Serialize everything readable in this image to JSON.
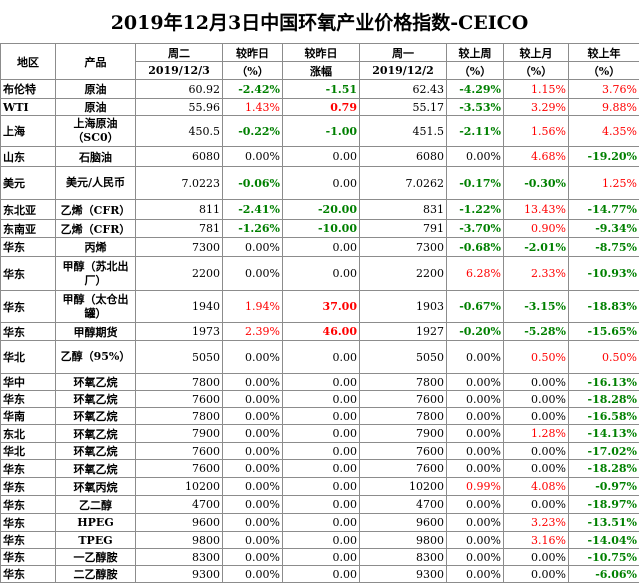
{
  "title": "2019年12月3日中国环氧产业价格指数-CEICO",
  "header": {
    "region": "地区",
    "product": "产品",
    "tue": "周二",
    "tue_date": "2019/12/3",
    "cmp_pct": "较昨日",
    "cmp_pct_unit": "（%）",
    "cmp_abs": "较昨日",
    "cmp_abs_unit": "涨幅",
    "mon": "周一",
    "mon_date": "2019/12/2",
    "wk": "较上周",
    "wk_unit": "（%）",
    "mo": "较上月",
    "mo_unit": "（%）",
    "yr": "较上年",
    "yr_unit": "（%）"
  },
  "colors": {
    "down": "#008000",
    "up": "#ff0000",
    "flat": "#000000",
    "grid": "#8c8c8c"
  },
  "rows": [
    {
      "region": "布伦特",
      "product": "原油",
      "tue": "60.92",
      "d_pct": "-2.42%",
      "d_abs": "-1.51",
      "mon": "62.43",
      "wk": "-4.29%",
      "mo": "1.15%",
      "yr": "3.76%"
    },
    {
      "region": "WTI",
      "product": "原油",
      "tue": "55.96",
      "d_pct": "1.43%",
      "d_abs": "0.79",
      "mon": "55.17",
      "wk": "-3.53%",
      "mo": "3.29%",
      "yr": "9.88%"
    },
    {
      "region": "上海",
      "product": "上海原油（SC0）",
      "tue": "450.5",
      "d_pct": "-0.22%",
      "d_abs": "-1.00",
      "mon": "451.5",
      "wk": "-2.11%",
      "mo": "1.56%",
      "yr": "4.35%"
    },
    {
      "region": "山东",
      "product": "石脑油",
      "tue": "6080",
      "d_pct": "0.00%",
      "d_abs": "0.00",
      "mon": "6080",
      "wk": "0.00%",
      "mo": "4.68%",
      "yr": "-19.20%"
    },
    {
      "region": "美元",
      "product": "美元/人民币",
      "tue": "7.0223",
      "d_pct": "-0.06%",
      "d_abs": "0.00",
      "mon": "7.0262",
      "wk": "-0.17%",
      "mo": "-0.30%",
      "yr": "1.25%"
    },
    {
      "region": "东北亚",
      "product": "乙烯（CFR）",
      "tue": "811",
      "d_pct": "-2.41%",
      "d_abs": "-20.00",
      "mon": "831",
      "wk": "-1.22%",
      "mo": "13.43%",
      "yr": "-14.77%"
    },
    {
      "region": "东南亚",
      "product": "乙烯（CFR）",
      "tue": "781",
      "d_pct": "-1.26%",
      "d_abs": "-10.00",
      "mon": "791",
      "wk": "-3.70%",
      "mo": "0.90%",
      "yr": "-9.34%"
    },
    {
      "region": "华东",
      "product": "丙烯",
      "tue": "7300",
      "d_pct": "0.00%",
      "d_abs": "0.00",
      "mon": "7300",
      "wk": "-0.68%",
      "mo": "-2.01%",
      "yr": "-8.75%"
    },
    {
      "region": "华东",
      "product": "甲醇（苏北出厂）",
      "tue": "2200",
      "d_pct": "0.00%",
      "d_abs": "0.00",
      "mon": "2200",
      "wk": "6.28%",
      "mo": "2.33%",
      "yr": "-10.93%"
    },
    {
      "region": "华东",
      "product": "甲醇（太仓出罐）",
      "tue": "1940",
      "d_pct": "1.94%",
      "d_abs": "37.00",
      "mon": "1903",
      "wk": "-0.67%",
      "mo": "-3.15%",
      "yr": "-18.83%"
    },
    {
      "region": "华东",
      "product": "甲醇期货",
      "tue": "1973",
      "d_pct": "2.39%",
      "d_abs": "46.00",
      "mon": "1927",
      "wk": "-0.20%",
      "mo": "-5.28%",
      "yr": "-15.65%"
    },
    {
      "region": "华北",
      "product": "乙醇（95%）",
      "tue": "5050",
      "d_pct": "0.00%",
      "d_abs": "0.00",
      "mon": "5050",
      "wk": "0.00%",
      "mo": "0.50%",
      "yr": "0.50%"
    },
    {
      "region": "华中",
      "product": "环氧乙烷",
      "tue": "7800",
      "d_pct": "0.00%",
      "d_abs": "0.00",
      "mon": "7800",
      "wk": "0.00%",
      "mo": "0.00%",
      "yr": "-16.13%"
    },
    {
      "region": "华东",
      "product": "环氧乙烷",
      "tue": "7600",
      "d_pct": "0.00%",
      "d_abs": "0.00",
      "mon": "7600",
      "wk": "0.00%",
      "mo": "0.00%",
      "yr": "-18.28%"
    },
    {
      "region": "华南",
      "product": "环氧乙烷",
      "tue": "7800",
      "d_pct": "0.00%",
      "d_abs": "0.00",
      "mon": "7800",
      "wk": "0.00%",
      "mo": "0.00%",
      "yr": "-16.58%"
    },
    {
      "region": "东北",
      "product": "环氧乙烷",
      "tue": "7900",
      "d_pct": "0.00%",
      "d_abs": "0.00",
      "mon": "7900",
      "wk": "0.00%",
      "mo": "1.28%",
      "yr": "-14.13%"
    },
    {
      "region": "华北",
      "product": "环氧乙烷",
      "tue": "7600",
      "d_pct": "0.00%",
      "d_abs": "0.00",
      "mon": "7600",
      "wk": "0.00%",
      "mo": "0.00%",
      "yr": "-17.02%"
    },
    {
      "region": "华东",
      "product": "环氧乙烷",
      "tue": "7600",
      "d_pct": "0.00%",
      "d_abs": "0.00",
      "mon": "7600",
      "wk": "0.00%",
      "mo": "0.00%",
      "yr": "-18.28%"
    },
    {
      "region": "华东",
      "product": "环氧丙烷",
      "tue": "10200",
      "d_pct": "0.00%",
      "d_abs": "0.00",
      "mon": "10200",
      "wk": "0.99%",
      "mo": "4.08%",
      "yr": "-0.97%"
    },
    {
      "region": "华东",
      "product": "乙二醇",
      "tue": "4700",
      "d_pct": "0.00%",
      "d_abs": "0.00",
      "mon": "4700",
      "wk": "0.00%",
      "mo": "0.00%",
      "yr": "-18.97%"
    },
    {
      "region": "华东",
      "product": "HPEG",
      "tue": "9600",
      "d_pct": "0.00%",
      "d_abs": "0.00",
      "mon": "9600",
      "wk": "0.00%",
      "mo": "3.23%",
      "yr": "-13.51%"
    },
    {
      "region": "华东",
      "product": "TPEG",
      "tue": "9800",
      "d_pct": "0.00%",
      "d_abs": "0.00",
      "mon": "9800",
      "wk": "0.00%",
      "mo": "3.16%",
      "yr": "-14.04%"
    },
    {
      "region": "华东",
      "product": "一乙醇胺",
      "tue": "8300",
      "d_pct": "0.00%",
      "d_abs": "0.00",
      "mon": "8300",
      "wk": "0.00%",
      "mo": "0.00%",
      "yr": "-10.75%"
    },
    {
      "region": "华东",
      "product": "二乙醇胺",
      "tue": "9300",
      "d_pct": "0.00%",
      "d_abs": "0.00",
      "mon": "9300",
      "wk": "0.00%",
      "mo": "0.00%",
      "yr": "-6.06%"
    }
  ]
}
